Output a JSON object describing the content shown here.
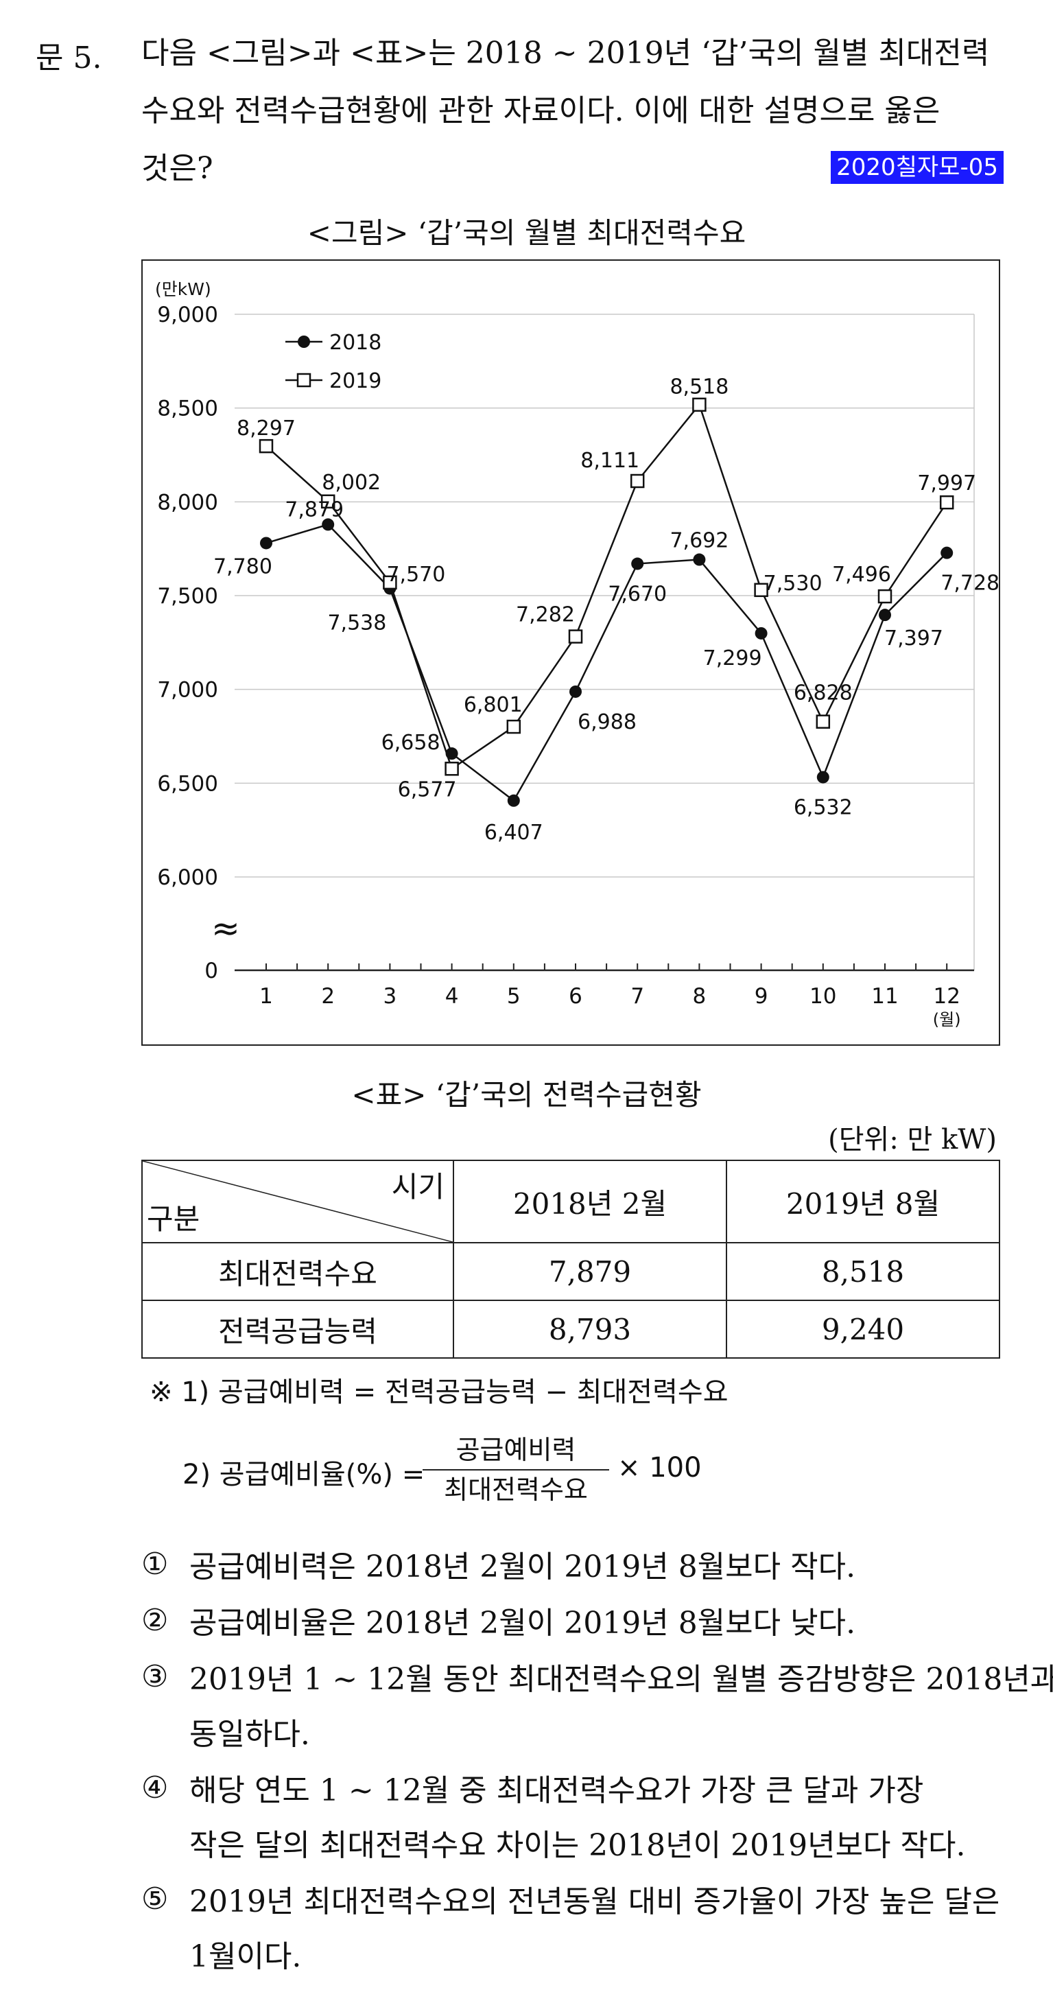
{
  "question": {
    "number": "문  5.",
    "lines": [
      "다음 <그림>과 <표>는 2018 ~ 2019년 ‘갑’국의 월별 최대전력",
      "수요와 전력수급현황에 관한 자료이다. 이에 대한 설명으로 옳은",
      "것은?"
    ],
    "tag": "2020칠자모-05"
  },
  "figure": {
    "caption": "<그림> ‘갑’국의 월별 최대전력수요"
  },
  "chart_data": {
    "type": "line",
    "title": "<그림> ‘갑’국의 월별 최대전력수요",
    "ylabel": "(만kW)",
    "xlabel": "(월)",
    "categories": [
      "1",
      "2",
      "3",
      "4",
      "5",
      "6",
      "7",
      "8",
      "9",
      "10",
      "11",
      "12"
    ],
    "y_ticks": [
      "9,000",
      "8,500",
      "8,000",
      "7,500",
      "7,000",
      "6,500",
      "6,000",
      "0"
    ],
    "ylim": [
      6000,
      9000
    ],
    "axis_break": "≈",
    "grid": true,
    "legend_position": "top-left",
    "series": [
      {
        "name": "2018",
        "marker": "filled-circle",
        "values": [
          7780,
          7879,
          7538,
          6658,
          6407,
          6988,
          7670,
          7692,
          7299,
          6532,
          7397,
          7728
        ],
        "labels": [
          "7,780",
          "7,879",
          "7,538",
          "6,658",
          "6,407",
          "6,988",
          "7,670",
          "7,692",
          "7,299",
          "6,532",
          "7,397",
          "7,728"
        ]
      },
      {
        "name": "2019",
        "marker": "open-square",
        "values": [
          8297,
          8002,
          7570,
          6577,
          6801,
          7282,
          8111,
          8518,
          7530,
          6828,
          7496,
          7997
        ],
        "labels": [
          "8,297",
          "8,002",
          "7,570",
          "6,577",
          "6,801",
          "7,282",
          "8,111",
          "8,518",
          "7,530",
          "6,828",
          "7,496",
          "7,997"
        ]
      }
    ]
  },
  "table": {
    "caption": "<표> ‘갑’국의 전력수급현황",
    "unit": "(단위: 만 kW)",
    "header_top": "시기",
    "header_bottom": "구분",
    "columns": [
      "2018년 2월",
      "2019년 8월"
    ],
    "rows": [
      {
        "label": "최대전력수요",
        "values": [
          "7,879",
          "8,518"
        ]
      },
      {
        "label": "전력공급능력",
        "values": [
          "8,793",
          "9,240"
        ]
      }
    ]
  },
  "notes": {
    "note1": "※  1) 공급예비력 = 전력공급능력 − 최대전력수요",
    "note2_prefix": "2) 공급예비율(%) =",
    "note2_numerator": "공급예비력",
    "note2_denominator": "최대전력수요",
    "note2_suffix": "× 100"
  },
  "options": [
    {
      "mark": "①",
      "lines": [
        "공급예비력은 2018년 2월이 2019년 8월보다 작다."
      ]
    },
    {
      "mark": "②",
      "lines": [
        "공급예비율은 2018년 2월이 2019년 8월보다 낮다."
      ]
    },
    {
      "mark": "③",
      "lines": [
        "2019년 1 ~ 12월 동안 최대전력수요의 월별 증감방향은 2018년과",
        "동일하다."
      ]
    },
    {
      "mark": "④",
      "lines": [
        "해당 연도 1 ~ 12월 중 최대전력수요가 가장 큰 달과 가장",
        "작은 달의 최대전력수요 차이는 2018년이 2019년보다 작다."
      ]
    },
    {
      "mark": "⑤",
      "lines": [
        "2019년 최대전력수요의 전년동월 대비 증가율이 가장 높은 달은",
        "1월이다."
      ]
    }
  ]
}
